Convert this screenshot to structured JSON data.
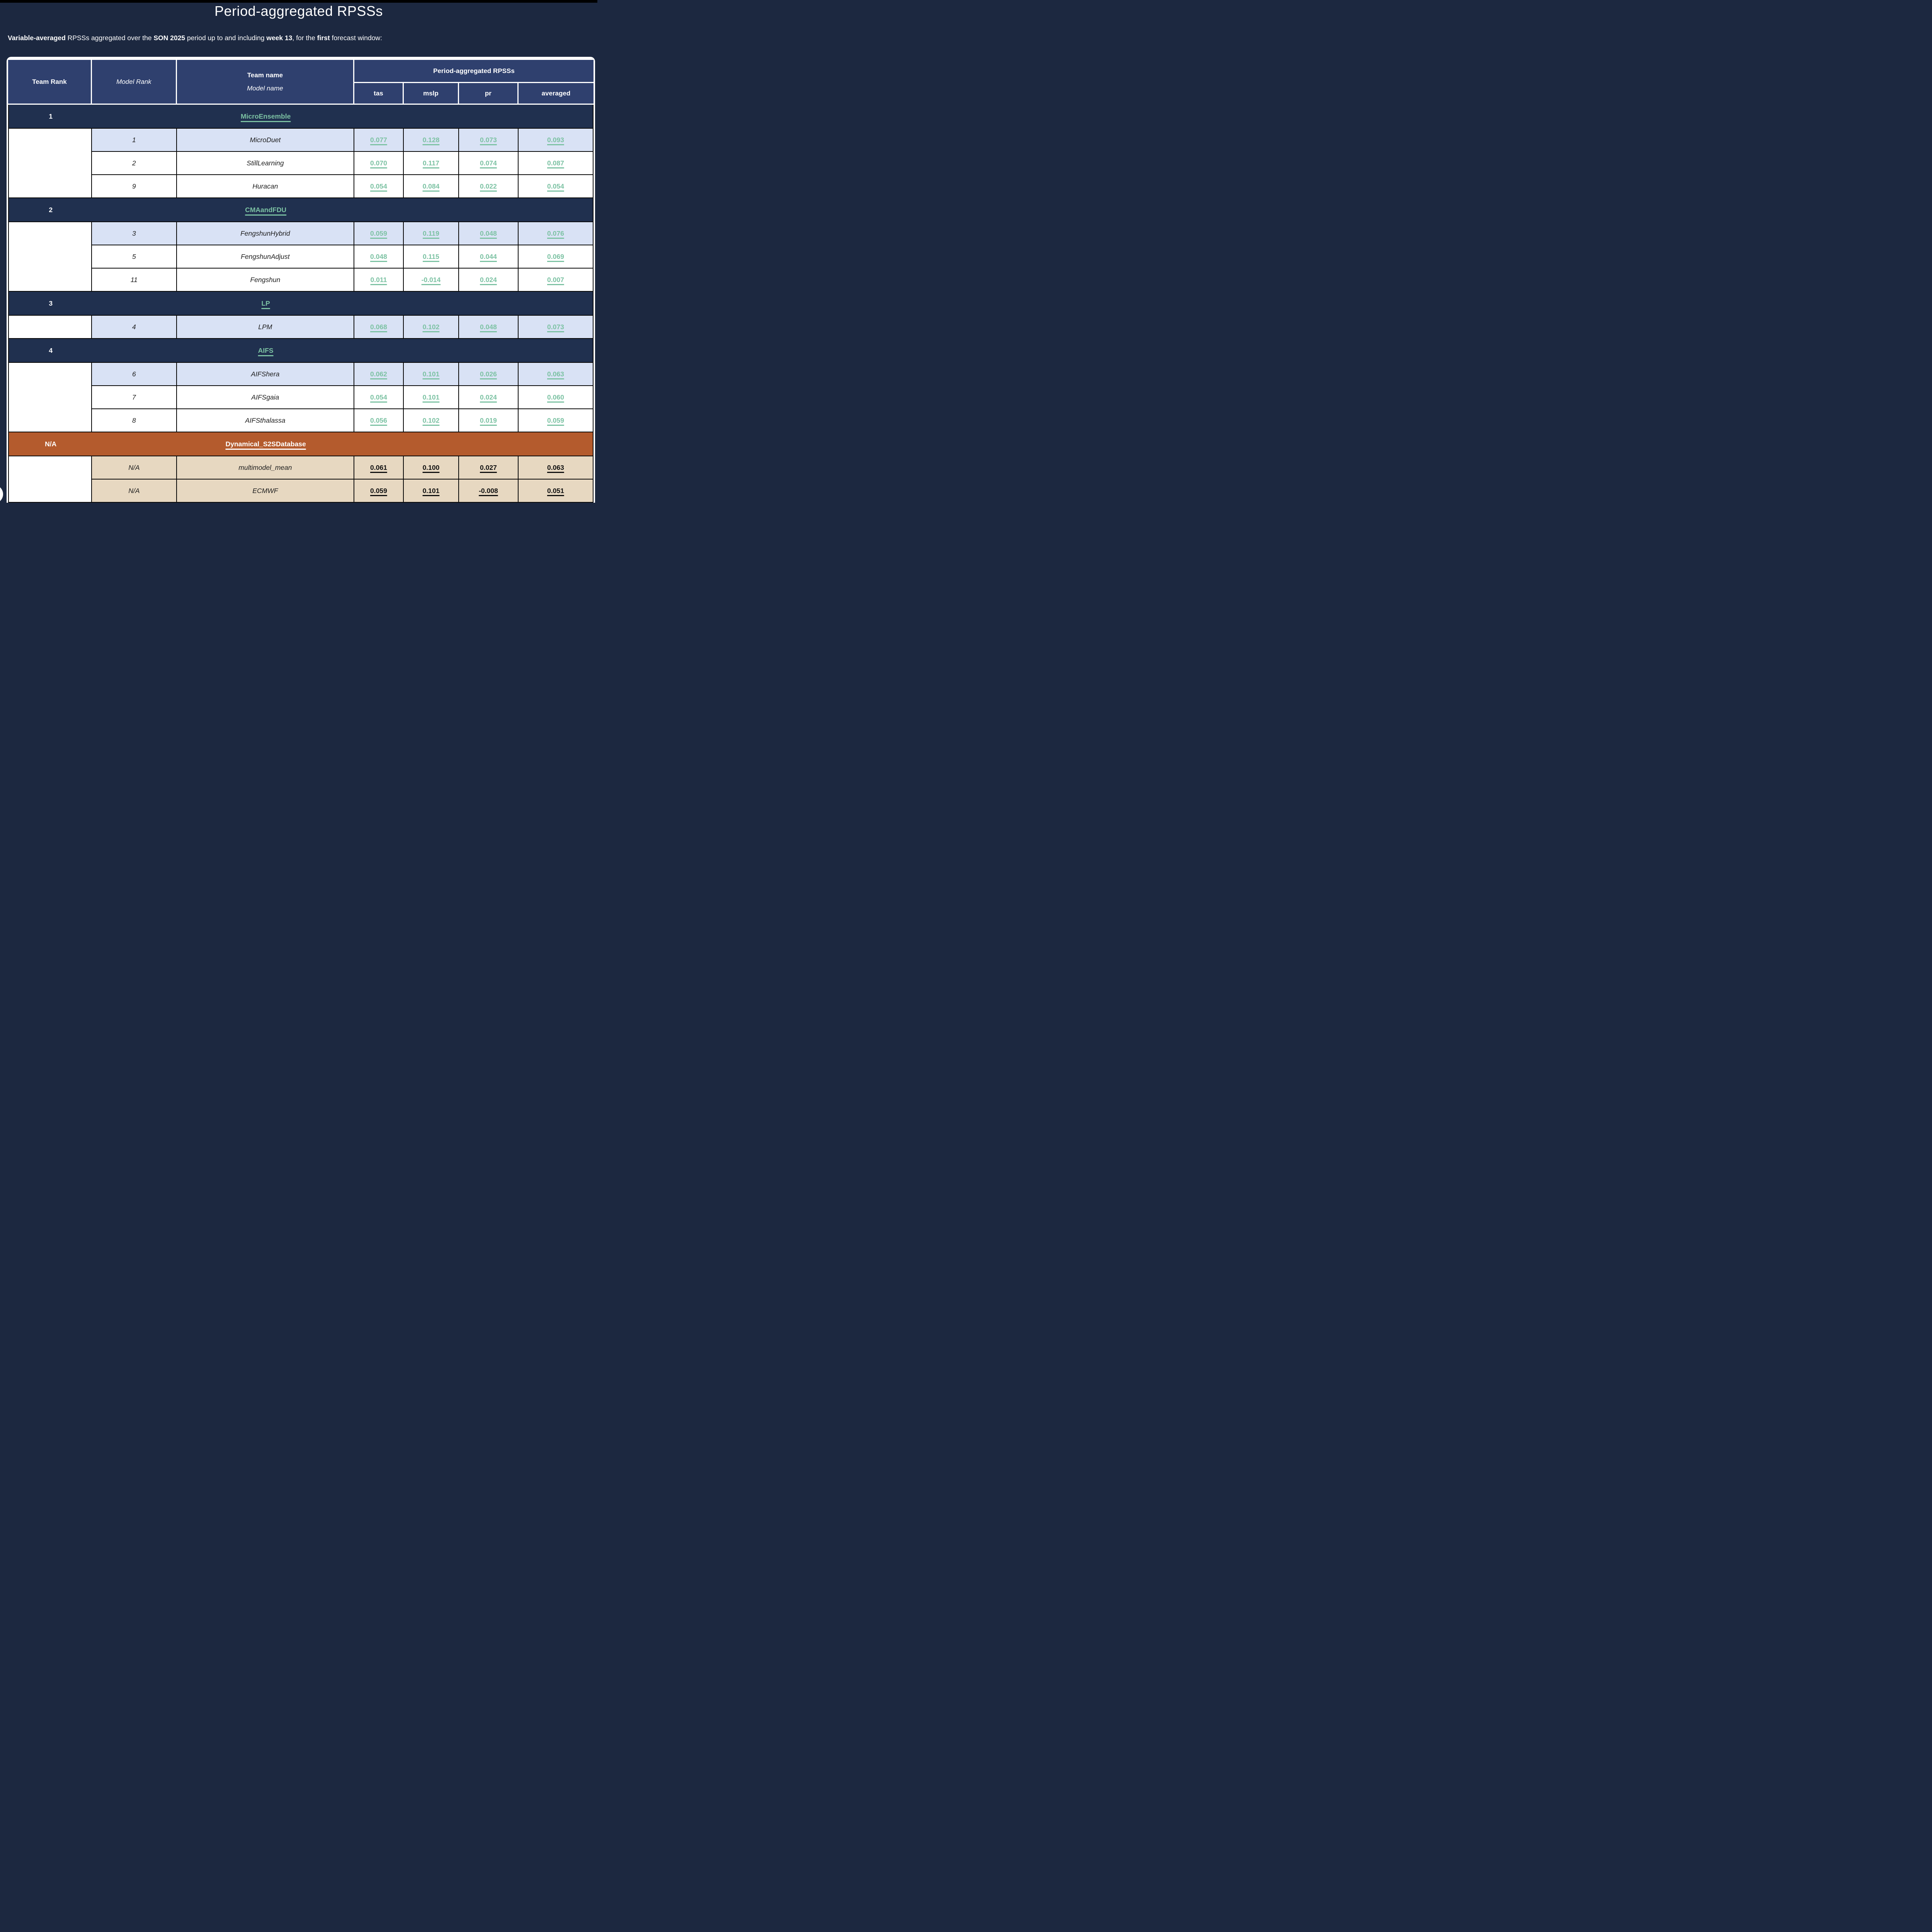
{
  "page": {
    "title": "Period-aggregated RPSSs"
  },
  "subtitle": {
    "segments": [
      {
        "text": "Variable-averaged",
        "bold": true
      },
      {
        "text": " RPSSs aggregated over the ",
        "bold": false
      },
      {
        "text": "SON 2025",
        "bold": true
      },
      {
        "text": " period up to and including ",
        "bold": false
      },
      {
        "text": "week 13",
        "bold": true
      },
      {
        "text": ", for the ",
        "bold": false
      },
      {
        "text": "first",
        "bold": true
      },
      {
        "text": " forecast window:",
        "bold": false
      }
    ]
  },
  "table": {
    "header": {
      "team_rank": "Team Rank",
      "model_rank": "Model Rank",
      "team_name": "Team name",
      "model_name": "Model name",
      "group": "Period-aggregated RPSSs",
      "metrics": [
        "tas",
        "mslp",
        "pr",
        "averaged"
      ]
    },
    "teams": [
      {
        "rank": "1",
        "name": "MicroEnsemble",
        "theme": "navy",
        "models": [
          {
            "rank": "1",
            "name": "MicroDuet",
            "bg": "blue",
            "values": [
              "0.077",
              "0.128",
              "0.073",
              "0.093"
            ]
          },
          {
            "rank": "2",
            "name": "StillLearning",
            "bg": "white",
            "values": [
              "0.070",
              "0.117",
              "0.074",
              "0.087"
            ]
          },
          {
            "rank": "9",
            "name": "Huracan",
            "bg": "white",
            "values": [
              "0.054",
              "0.084",
              "0.022",
              "0.054"
            ]
          }
        ]
      },
      {
        "rank": "2",
        "name": "CMAandFDU",
        "theme": "navy",
        "models": [
          {
            "rank": "3",
            "name": "FengshunHybrid",
            "bg": "blue",
            "values": [
              "0.059",
              "0.119",
              "0.048",
              "0.076"
            ]
          },
          {
            "rank": "5",
            "name": "FengshunAdjust",
            "bg": "white",
            "values": [
              "0.048",
              "0.115",
              "0.044",
              "0.069"
            ]
          },
          {
            "rank": "11",
            "name": "Fengshun",
            "bg": "white",
            "values": [
              "0.011",
              "-0.014",
              "0.024",
              "0.007"
            ]
          }
        ]
      },
      {
        "rank": "3",
        "name": "LP",
        "theme": "navy",
        "models": [
          {
            "rank": "4",
            "name": "LPM",
            "bg": "blue",
            "values": [
              "0.068",
              "0.102",
              "0.048",
              "0.073"
            ]
          }
        ]
      },
      {
        "rank": "4",
        "name": "AIFS",
        "theme": "navy",
        "models": [
          {
            "rank": "6",
            "name": "AIFShera",
            "bg": "blue",
            "values": [
              "0.062",
              "0.101",
              "0.026",
              "0.063"
            ]
          },
          {
            "rank": "7",
            "name": "AIFSgaia",
            "bg": "white",
            "values": [
              "0.054",
              "0.101",
              "0.024",
              "0.060"
            ]
          },
          {
            "rank": "8",
            "name": "AIFSthalassa",
            "bg": "white",
            "values": [
              "0.056",
              "0.102",
              "0.019",
              "0.059"
            ]
          }
        ]
      },
      {
        "rank": "N/A",
        "name": "Dynamical_S2SDatabase",
        "theme": "orange",
        "models": [
          {
            "rank": "N/A",
            "name": "multimodel_mean",
            "bg": "tan",
            "values": [
              "0.061",
              "0.100",
              "0.027",
              "0.063"
            ]
          },
          {
            "rank": "N/A",
            "name": "ECMWF",
            "bg": "tan",
            "values": [
              "0.059",
              "0.101",
              "-0.008",
              "0.051"
            ]
          }
        ]
      }
    ]
  },
  "colors": {
    "page_bg": "#1c2840",
    "header_bg": "#2f406e",
    "team_row_bg": "#20304f",
    "orange_row_bg": "#b45b2d",
    "tan_row_bg": "#e7d8c1",
    "highlight_row_bg": "#d9e2f5",
    "accent_teal": "#7cc2a3",
    "link_dark": "#0f0f0f"
  }
}
